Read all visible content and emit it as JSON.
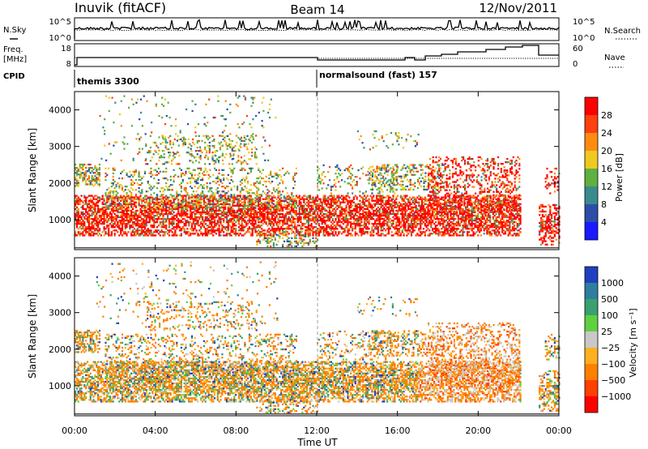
{
  "header": {
    "station": "Inuvik (fitACF)",
    "beam": "Beam 14",
    "date": "12/Nov/2011"
  },
  "tracks": {
    "nsky_label": "N.Sky",
    "nsky_ticks": [
      "10^5",
      "10^0"
    ],
    "nsearch_label": "N.Search",
    "nsearch_ticks": [
      "10^5",
      "10^0"
    ],
    "freq_label": "Freq.",
    "freq_unit": "[MHz]",
    "freq_ticks": [
      "18",
      "8"
    ],
    "nave_label": "Nave",
    "nave_ticks": [
      "60",
      "0"
    ],
    "cpid_label": "CPID",
    "cpid_segments": [
      {
        "label": "themis 3300",
        "start_hour": 0
      },
      {
        "label": "normalsound (fast) 157",
        "start_hour": 12
      }
    ]
  },
  "chart_data": [
    {
      "type": "heatmap",
      "title": "",
      "xlabel": "Time UT",
      "ylabel": "Slant Range [km]",
      "x_ticks": [
        "00:00",
        "04:00",
        "08:00",
        "12:00",
        "16:00",
        "20:00",
        "00:00"
      ],
      "x_hours": [
        0,
        4,
        8,
        12,
        16,
        20,
        24
      ],
      "y_ticks": [
        1000,
        2000,
        3000,
        4000
      ],
      "ylim": [
        180,
        4500
      ],
      "colorbar": {
        "label": "Power [dB]",
        "ticks": [
          "4",
          "8",
          "12",
          "16",
          "20",
          "24",
          "28"
        ],
        "colors": [
          "#1a1aff",
          "#2b4fa8",
          "#3a8c8c",
          "#5fb040",
          "#f0c820",
          "#ff8c10",
          "#ff4010",
          "#ff0000"
        ]
      }
    },
    {
      "type": "heatmap",
      "title": "",
      "xlabel": "Time UT",
      "ylabel": "Slant Range [km]",
      "x_ticks": [
        "00:00",
        "04:00",
        "08:00",
        "12:00",
        "16:00",
        "20:00",
        "00:00"
      ],
      "x_hours": [
        0,
        4,
        8,
        12,
        16,
        20,
        24
      ],
      "y_ticks": [
        1000,
        2000,
        3000,
        4000
      ],
      "ylim": [
        180,
        4500
      ],
      "colorbar": {
        "label": "Velocity [m s⁻¹]",
        "ticks": [
          "1000",
          "500",
          "100",
          "25",
          "−25",
          "−100",
          "−500",
          "−1000"
        ],
        "colors": [
          "#2040c0",
          "#2e7ea0",
          "#3aa070",
          "#60d040",
          "#c8c8c8",
          "#ffb020",
          "#ff8000",
          "#ff4000",
          "#ff0000"
        ]
      }
    }
  ]
}
